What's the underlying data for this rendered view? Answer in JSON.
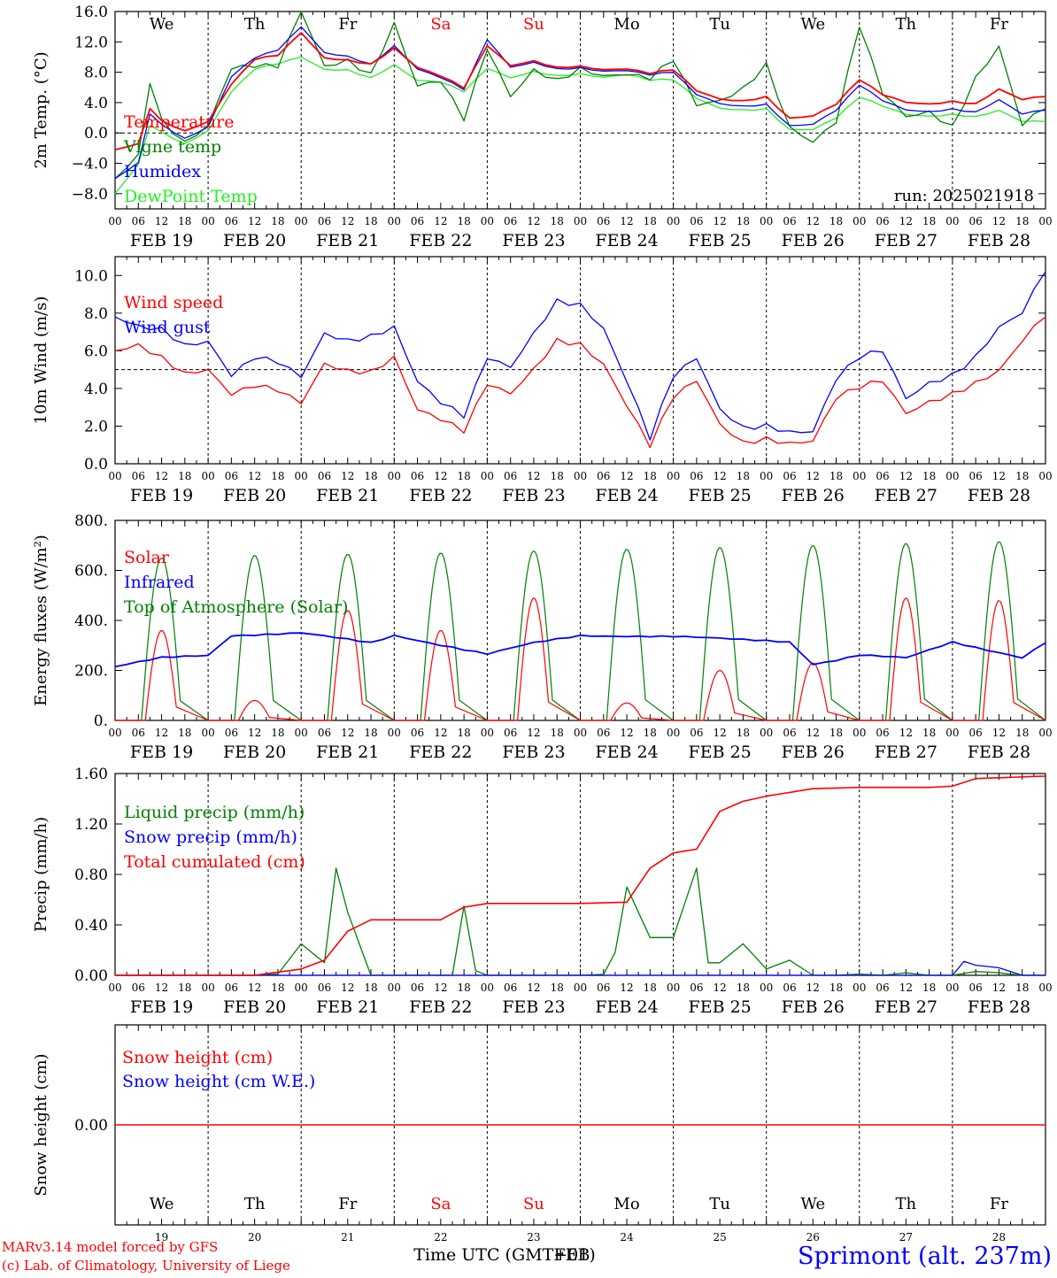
{
  "meta": {
    "model_line": "MARv3.14 model forced by GFS",
    "copyright_line": "(c) Lab. of Climatology, University of Liege",
    "station": "Sprimont (alt. 237m)",
    "x_label": "Time UTC (GMT+01)",
    "x_label_overprint": "FEB"
  },
  "colors": {
    "red": "#ff0000",
    "green": "#008000",
    "blue": "#0000ff",
    "lightgreen": "#22ee22",
    "weekend": "#ff0000",
    "text": "#000000",
    "axis": "#000000"
  },
  "time_axis": {
    "hour_ticks": [
      "00",
      "06",
      "12",
      "18"
    ],
    "dates": [
      "FEB 19",
      "FEB 20",
      "FEB 21",
      "FEB 22",
      "FEB 23",
      "FEB 24",
      "FEB 25",
      "FEB 26",
      "FEB 27",
      "FEB 28"
    ],
    "day_numbers": [
      "19",
      "20",
      "21",
      "22",
      "23",
      "24",
      "25",
      "26",
      "27",
      "28"
    ],
    "weekdays": [
      "We",
      "Th",
      "Fr",
      "Sa",
      "Su",
      "Mo",
      "Tu",
      "We",
      "Th",
      "Fr"
    ],
    "weekend_flags": [
      false,
      false,
      false,
      true,
      true,
      false,
      false,
      false,
      false,
      false
    ]
  },
  "chart_data": [
    {
      "type": "line",
      "ylabel": "2m Temp. (°C)",
      "ylim": [
        -10,
        16
      ],
      "y_ticks": [
        "16.0",
        "12.0",
        "8.0",
        "4.0",
        "0.0",
        "−4.0",
        "−8.0"
      ],
      "reference_line": 0,
      "annotation": "run: 2025021918",
      "x_hours": [
        0,
        6,
        9,
        12,
        18,
        24,
        30,
        36,
        42,
        48,
        54,
        60,
        66,
        72,
        78,
        84,
        90,
        96,
        102,
        108,
        114,
        120,
        126,
        132,
        138,
        144,
        150,
        156,
        162,
        168,
        174,
        180,
        186,
        192,
        198,
        204,
        210,
        216,
        222,
        228,
        234,
        240
      ],
      "series": [
        {
          "name": "Temperature",
          "color": "red",
          "values": [
            -2.2,
            -1.5,
            3.2,
            1.5,
            0.2,
            1.5,
            6.5,
            9.8,
            10.3,
            13.2,
            9.8,
            9.5,
            9.0,
            11.2,
            8.7,
            7.6,
            6.0,
            11.5,
            8.8,
            9.4,
            8.6,
            8.8,
            8.4,
            8.5,
            7.9,
            8.3,
            5.5,
            4.4,
            4.2,
            4.8,
            2.0,
            2.3,
            3.8,
            7.0,
            5.0,
            4.0,
            3.8,
            4.2,
            3.9,
            5.8,
            4.4,
            4.8
          ]
        },
        {
          "name": "Vigne temp",
          "color": "green",
          "values": [
            -6.0,
            -3.2,
            6.5,
            1.3,
            -1.5,
            1.0,
            8.8,
            9.2,
            9.0,
            16.0,
            8.5,
            9.2,
            7.5,
            14.5,
            6.5,
            7.2,
            2.0,
            11.0,
            4.5,
            8.0,
            6.8,
            8.6,
            7.8,
            8.0,
            7.3,
            9.5,
            3.4,
            4.0,
            5.8,
            9.2,
            1.0,
            -1.0,
            1.5,
            14.0,
            5.0,
            2.0,
            2.8,
            1.0,
            7.5,
            11.5,
            1.0,
            3.2
          ]
        },
        {
          "name": "Humidex",
          "color": "blue",
          "values": [
            -6.0,
            -4.0,
            2.5,
            1.0,
            -0.8,
            0.8,
            7.5,
            10.0,
            11.0,
            14.0,
            10.5,
            10.0,
            9.0,
            11.5,
            8.5,
            7.4,
            5.8,
            12.3,
            8.6,
            9.2,
            8.4,
            8.6,
            8.2,
            8.3,
            7.7,
            8.0,
            5.0,
            3.8,
            3.5,
            3.8,
            1.0,
            1.2,
            3.0,
            6.3,
            4.2,
            3.0,
            2.8,
            3.2,
            2.8,
            4.4,
            2.5,
            3.0
          ]
        },
        {
          "name": "DewPoint Temp",
          "color": "lightgreen",
          "values": [
            -8.0,
            -4.2,
            1.0,
            0.0,
            -1.5,
            0.3,
            5.5,
            8.5,
            9.2,
            10.0,
            8.3,
            8.2,
            7.2,
            9.0,
            7.0,
            6.8,
            5.5,
            8.5,
            7.2,
            8.0,
            7.5,
            7.8,
            7.4,
            7.8,
            7.0,
            7.0,
            4.5,
            3.2,
            3.0,
            3.2,
            0.5,
            0.5,
            2.0,
            4.7,
            3.5,
            2.4,
            2.2,
            2.5,
            2.2,
            3.0,
            1.5,
            1.5
          ]
        }
      ]
    },
    {
      "type": "line",
      "ylabel": "10m Wind (m/s)",
      "ylim": [
        0,
        11
      ],
      "y_ticks": [
        "10.0",
        "8.0",
        "6.0",
        "4.0",
        "2.0",
        "0.0"
      ],
      "reference_line": 5,
      "x_hours": [
        0,
        6,
        12,
        18,
        24,
        30,
        36,
        42,
        48,
        54,
        60,
        66,
        72,
        78,
        84,
        90,
        96,
        102,
        108,
        114,
        120,
        126,
        132,
        138,
        144,
        150,
        156,
        162,
        168,
        174,
        180,
        186,
        192,
        198,
        204,
        210,
        216,
        222,
        228,
        234,
        240
      ],
      "series": [
        {
          "name": "Wind speed",
          "color": "red",
          "values": [
            6.0,
            6.2,
            5.5,
            4.7,
            5.0,
            3.8,
            4.3,
            4.0,
            3.2,
            5.2,
            4.8,
            4.8,
            5.7,
            3.0,
            2.5,
            1.8,
            4.2,
            3.6,
            4.9,
            6.5,
            6.4,
            5.4,
            3.2,
            1.0,
            3.5,
            4.3,
            2.0,
            1.1,
            1.4,
            1.2,
            1.3,
            3.5,
            4.0,
            4.3,
            2.6,
            3.3,
            3.8,
            4.4,
            5.0,
            6.5,
            7.8
          ]
        },
        {
          "name": "Wind gust",
          "color": "blue",
          "values": [
            7.8,
            7.2,
            7.0,
            6.2,
            6.5,
            4.8,
            5.8,
            5.5,
            4.6,
            6.8,
            6.4,
            6.7,
            7.3,
            4.5,
            3.4,
            2.6,
            5.6,
            5.0,
            6.8,
            8.6,
            8.5,
            7.3,
            4.5,
            1.4,
            4.6,
            5.5,
            2.8,
            1.9,
            2.1,
            1.8,
            1.8,
            4.5,
            5.6,
            5.9,
            3.4,
            4.3,
            4.8,
            5.8,
            7.3,
            8.0,
            10.2
          ]
        }
      ]
    },
    {
      "type": "line",
      "ylabel": "Energy fluxes (W/m²)",
      "ylim": [
        0,
        800
      ],
      "y_ticks": [
        "800.",
        "600.",
        "400.",
        "200.",
        "0."
      ],
      "series": [
        {
          "name": "Solar",
          "color": "red",
          "day_peaks": [
            360,
            80,
            440,
            360,
            490,
            70,
            200,
            230,
            490,
            480
          ]
        },
        {
          "name": "Infrared",
          "color": "blue",
          "x_hours": [
            0,
            12,
            24,
            30,
            48,
            66,
            72,
            96,
            108,
            120,
            144,
            168,
            174,
            180,
            186,
            192,
            204,
            216,
            234,
            240
          ],
          "values": [
            215,
            250,
            260,
            340,
            350,
            310,
            340,
            265,
            310,
            340,
            335,
            320,
            315,
            225,
            240,
            260,
            250,
            315,
            250,
            310
          ]
        },
        {
          "name": "Top of Atmosphere (Solar)",
          "color": "green",
          "day_peaks": [
            650,
            660,
            665,
            670,
            678,
            685,
            692,
            700,
            708,
            715
          ]
        }
      ]
    },
    {
      "type": "line",
      "ylabel": "Precip (mm/h)",
      "ylim": [
        0,
        1.6
      ],
      "y_ticks": [
        "1.60",
        "1.20",
        "0.80",
        "0.40",
        "0.00"
      ],
      "series": [
        {
          "name": "Liquid precip (mm/h)",
          "color": "green",
          "x_hours": [
            0,
            36,
            42,
            48,
            54,
            57,
            60,
            66,
            72,
            84,
            88,
            90,
            92,
            96,
            108,
            120,
            128,
            132,
            138,
            144,
            150,
            152,
            156,
            162,
            168,
            174,
            180,
            186,
            192,
            198,
            204,
            210,
            216,
            222,
            228,
            234,
            240
          ],
          "values": [
            0,
            0,
            0.01,
            0.25,
            0.1,
            0.85,
            0.5,
            0,
            0,
            0,
            0,
            0.55,
            0.05,
            0,
            0,
            0,
            0.01,
            0.7,
            0.3,
            0.3,
            0.85,
            0.1,
            0.1,
            0.25,
            0.05,
            0.12,
            0,
            0,
            0.01,
            0,
            0.02,
            0,
            0,
            0.03,
            0.02,
            0,
            0
          ]
        },
        {
          "name": "Snow precip (mm/h)",
          "color": "blue",
          "x_hours": [
            0,
            200,
            216,
            218,
            222,
            228,
            234,
            240
          ],
          "values": [
            0,
            0,
            0,
            0.12,
            0.08,
            0.06,
            0,
            0
          ]
        },
        {
          "name": "Total cumulated (cm)",
          "color": "red",
          "x_hours": [
            0,
            36,
            48,
            54,
            60,
            66,
            84,
            90,
            96,
            120,
            132,
            138,
            144,
            150,
            156,
            162,
            168,
            174,
            180,
            192,
            210,
            216,
            222,
            240
          ],
          "values": [
            0,
            0,
            0.05,
            0.12,
            0.35,
            0.44,
            0.44,
            0.54,
            0.57,
            0.57,
            0.58,
            0.85,
            0.97,
            1.0,
            1.3,
            1.38,
            1.42,
            1.45,
            1.48,
            1.49,
            1.49,
            1.5,
            1.56,
            1.58
          ]
        }
      ]
    },
    {
      "type": "line",
      "ylabel": "Snow height (cm)",
      "ylim": [
        -1,
        1
      ],
      "y_ticks": [
        "0.00"
      ],
      "series": [
        {
          "name": "Snow height (cm)",
          "color": "red",
          "x_hours": [
            0,
            240
          ],
          "values": [
            0,
            0
          ]
        },
        {
          "name": "Snow height (cm W.E.)",
          "color": "blue",
          "x_hours": [
            0,
            240
          ],
          "values": [
            0,
            0
          ]
        }
      ]
    }
  ]
}
